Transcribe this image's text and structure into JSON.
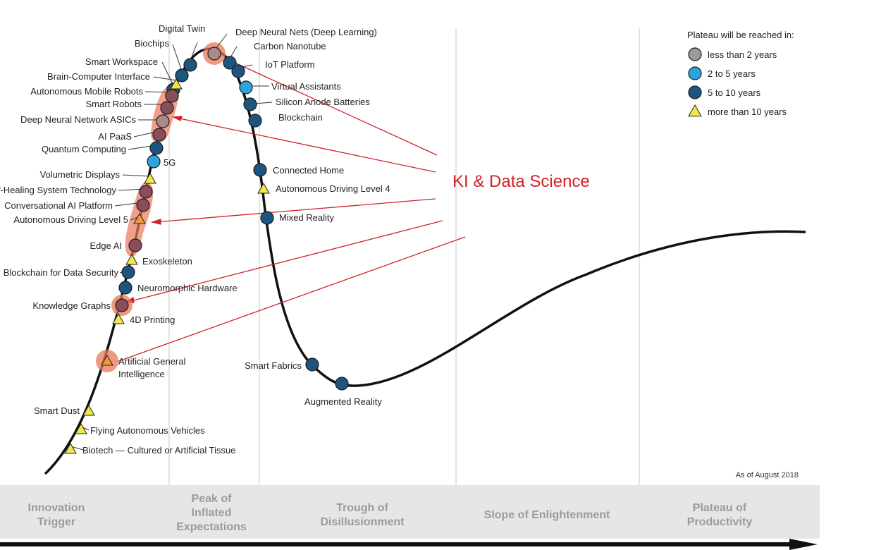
{
  "colors": {
    "less_than_2": "#9a9a9a",
    "two_to_five": "#2ea3dc",
    "five_to_ten": "#1c5580",
    "more_than_10": "#f1e64a",
    "highlight": "#e8785a",
    "callout": "#d0222a",
    "band": "#e6e6e6"
  },
  "legend": {
    "title": "Plateau will be reached in:",
    "items": [
      {
        "label": "less than 2 years",
        "shape": "circle",
        "color_key": "less_than_2"
      },
      {
        "label": "2 to 5 years",
        "shape": "circle",
        "color_key": "two_to_five"
      },
      {
        "label": "5 to 10 years",
        "shape": "circle",
        "color_key": "five_to_ten"
      },
      {
        "label": "more than 10 years",
        "shape": "triangle",
        "color_key": "more_than_10"
      }
    ]
  },
  "phases": [
    {
      "lines": [
        "Innovation",
        "Trigger"
      ]
    },
    {
      "lines": [
        "Peak of",
        "Inflated",
        "Expectations"
      ]
    },
    {
      "lines": [
        "Trough of",
        "Disillusionment"
      ]
    },
    {
      "lines": [
        "Slope of Enlightenment"
      ]
    },
    {
      "lines": [
        "Plateau of",
        "Productivity"
      ]
    }
  ],
  "as_of": "As of August 2018",
  "callout": {
    "text": "KI & Data Science"
  },
  "technologies": [
    {
      "name": "Digital Twin",
      "lines": [
        "Digital Twin"
      ],
      "category": "five_to_ten",
      "highlight": false
    },
    {
      "name": "Biochips",
      "lines": [
        "Biochips"
      ],
      "category": "five_to_ten",
      "highlight": false
    },
    {
      "name": "Deep Neural Nets (Deep Learning)",
      "lines": [
        "Deep Neural Nets (Deep Learning)"
      ],
      "category": "less_than_2",
      "highlight": true
    },
    {
      "name": "Carbon Nanotube",
      "lines": [
        "Carbon Nanotube"
      ],
      "category": "five_to_ten",
      "highlight": false
    },
    {
      "name": "IoT Platform",
      "lines": [
        "IoT Platform"
      ],
      "category": "five_to_ten",
      "highlight": false
    },
    {
      "name": "Smart Workspace",
      "lines": [
        "Smart Workspace"
      ],
      "category": "five_to_ten",
      "highlight": false
    },
    {
      "name": "Brain-Computer Interface",
      "lines": [
        "Brain-Computer Interface"
      ],
      "category": "more_than_10",
      "highlight": false
    },
    {
      "name": "Virtual Assistants",
      "lines": [
        "Virtual Assistants"
      ],
      "category": "two_to_five",
      "highlight": false
    },
    {
      "name": "Silicon Anode Batteries",
      "lines": [
        "Silicon Anode Batteries"
      ],
      "category": "five_to_ten",
      "highlight": false
    },
    {
      "name": "Autonomous Mobile Robots",
      "lines": [
        "Autonomous Mobile Robots"
      ],
      "category": "five_to_ten",
      "highlight": true
    },
    {
      "name": "Smart Robots",
      "lines": [
        "Smart Robots"
      ],
      "category": "five_to_ten",
      "highlight": true
    },
    {
      "name": "Deep Neural Network ASICs",
      "lines": [
        "Deep Neural Network ASICs"
      ],
      "category": "less_than_2",
      "highlight": true
    },
    {
      "name": "Blockchain",
      "lines": [
        "Blockchain"
      ],
      "category": "five_to_ten",
      "highlight": false
    },
    {
      "name": "AI PaaS",
      "lines": [
        "AI PaaS"
      ],
      "category": "five_to_ten",
      "highlight": true
    },
    {
      "name": "Quantum Computing",
      "lines": [
        "Quantum Computing"
      ],
      "category": "five_to_ten",
      "highlight": false
    },
    {
      "name": "5G",
      "lines": [
        "5G"
      ],
      "category": "two_to_five",
      "highlight": false
    },
    {
      "name": "Connected Home",
      "lines": [
        "Connected Home"
      ],
      "category": "five_to_ten",
      "highlight": false
    },
    {
      "name": "Volumetric Displays",
      "lines": [
        "Volumetric Displays"
      ],
      "category": "more_than_10",
      "highlight": false
    },
    {
      "name": "Autonomous Driving Level 4",
      "lines": [
        "Autonomous Driving Level 4"
      ],
      "category": "more_than_10",
      "highlight": false
    },
    {
      "name": "Self-Healing System Technology",
      "lines": [
        "Self-Healing System Technology"
      ],
      "category": "five_to_ten",
      "highlight": true
    },
    {
      "name": "Conversational AI Platform",
      "lines": [
        "Conversational AI Platform"
      ],
      "category": "five_to_ten",
      "highlight": true
    },
    {
      "name": "Autonomous Driving Level 5",
      "lines": [
        "Autonomous Driving Level 5"
      ],
      "category": "more_than_10",
      "highlight": true
    },
    {
      "name": "Mixed Reality",
      "lines": [
        "Mixed Reality"
      ],
      "category": "five_to_ten",
      "highlight": false
    },
    {
      "name": "Edge AI",
      "lines": [
        "Edge AI"
      ],
      "category": "five_to_ten",
      "highlight": true
    },
    {
      "name": "Exoskeleton",
      "lines": [
        "Exoskeleton"
      ],
      "category": "more_than_10",
      "highlight": false
    },
    {
      "name": "Blockchain for Data Security",
      "lines": [
        "Blockchain for Data Security"
      ],
      "category": "five_to_ten",
      "highlight": false
    },
    {
      "name": "Neuromorphic Hardware",
      "lines": [
        "Neuromorphic Hardware"
      ],
      "category": "five_to_ten",
      "highlight": false
    },
    {
      "name": "Knowledge Graphs",
      "lines": [
        "Knowledge Graphs"
      ],
      "category": "five_to_ten",
      "highlight": true
    },
    {
      "name": "4D Printing",
      "lines": [
        "4D Printing"
      ],
      "category": "more_than_10",
      "highlight": false
    },
    {
      "name": "Artificial General Intelligence",
      "lines": [
        "Artificial General",
        "Intelligence"
      ],
      "category": "more_than_10",
      "highlight": true
    },
    {
      "name": "Smart Fabrics",
      "lines": [
        "Smart Fabrics"
      ],
      "category": "five_to_ten",
      "highlight": false
    },
    {
      "name": "Augmented Reality",
      "lines": [
        "Augmented Reality"
      ],
      "category": "five_to_ten",
      "highlight": false
    },
    {
      "name": "Smart Dust",
      "lines": [
        "Smart Dust"
      ],
      "category": "more_than_10",
      "highlight": false
    },
    {
      "name": "Flying Autonomous Vehicles",
      "lines": [
        "Flying Autonomous Vehicles"
      ],
      "category": "more_than_10",
      "highlight": false
    },
    {
      "name": "Biotech — Cultured or Artificial Tissue",
      "lines": [
        "Biotech — Cultured or Artificial Tissue"
      ],
      "category": "more_than_10",
      "highlight": false
    }
  ]
}
